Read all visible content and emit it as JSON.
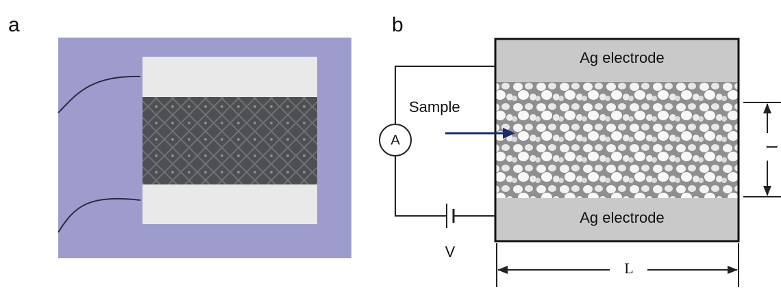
{
  "panel_a": {
    "label": "a"
  },
  "panel_b": {
    "label": "b",
    "top_electrode": "Ag electrode",
    "bottom_electrode": "Ag electrode",
    "sample": "Sample",
    "ammeter": "A",
    "voltage": "V",
    "length": "L",
    "thickness": "l"
  }
}
